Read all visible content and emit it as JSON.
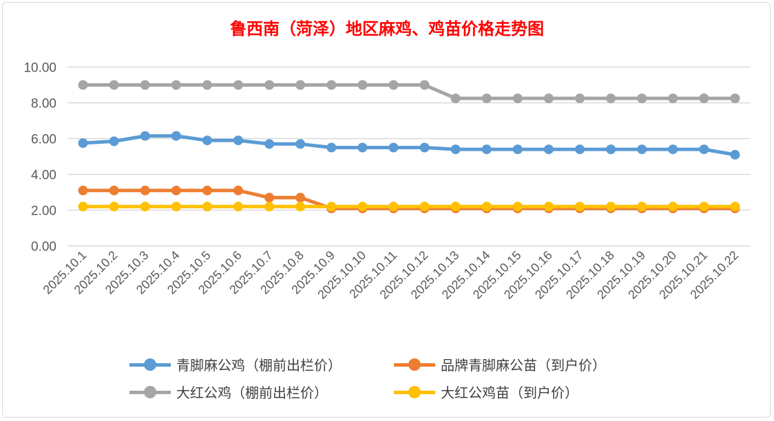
{
  "chart_data": {
    "type": "line",
    "title": "鲁西南（菏泽）地区麻鸡、鸡苗价格走势图",
    "xlabel": "",
    "ylabel": "",
    "ylim": [
      0,
      10
    ],
    "yticks": [
      "0.00",
      "2.00",
      "4.00",
      "6.00",
      "8.00",
      "10.00"
    ],
    "grid": true,
    "legend_position": "bottom",
    "categories": [
      "2025.10.1",
      "2025.10.2",
      "2025.10.3",
      "2025.10.4",
      "2025.10.5",
      "2025.10.6",
      "2025.10.7",
      "2025.10.8",
      "2025.10.9",
      "2025.10.10",
      "2025.10.11",
      "2025.10.12",
      "2025.10.13",
      "2025.10.14",
      "2025.10.15",
      "2025.10.16",
      "2025.10.17",
      "2025.10.18",
      "2025.10.19",
      "2025.10.20",
      "2025.10.21",
      "2025.10.22"
    ],
    "series": [
      {
        "name": "青脚麻公鸡（棚前出栏价）",
        "color": "#5b9bd5",
        "values": [
          5.75,
          5.85,
          6.15,
          6.15,
          5.9,
          5.9,
          5.7,
          5.7,
          5.5,
          5.5,
          5.5,
          5.5,
          5.4,
          5.4,
          5.4,
          5.4,
          5.4,
          5.4,
          5.4,
          5.4,
          5.4,
          5.1
        ]
      },
      {
        "name": "品牌青脚麻公苗（到户价）",
        "color": "#ed7d31",
        "values": [
          3.1,
          3.1,
          3.1,
          3.1,
          3.1,
          3.1,
          2.7,
          2.7,
          2.1,
          2.1,
          2.1,
          2.1,
          2.1,
          2.1,
          2.1,
          2.1,
          2.1,
          2.1,
          2.1,
          2.1,
          2.1,
          2.1
        ]
      },
      {
        "name": "大红公鸡（棚前出栏价）",
        "color": "#a5a5a5",
        "values": [
          9.0,
          9.0,
          9.0,
          9.0,
          9.0,
          9.0,
          9.0,
          9.0,
          9.0,
          9.0,
          9.0,
          9.0,
          8.25,
          8.25,
          8.25,
          8.25,
          8.25,
          8.25,
          8.25,
          8.25,
          8.25,
          8.25
        ]
      },
      {
        "name": "大红公鸡苗（到户价）",
        "color": "#ffc000",
        "values": [
          2.2,
          2.2,
          2.2,
          2.2,
          2.2,
          2.2,
          2.2,
          2.2,
          2.2,
          2.2,
          2.2,
          2.2,
          2.2,
          2.2,
          2.2,
          2.2,
          2.2,
          2.2,
          2.2,
          2.2,
          2.2,
          2.2
        ]
      }
    ]
  }
}
